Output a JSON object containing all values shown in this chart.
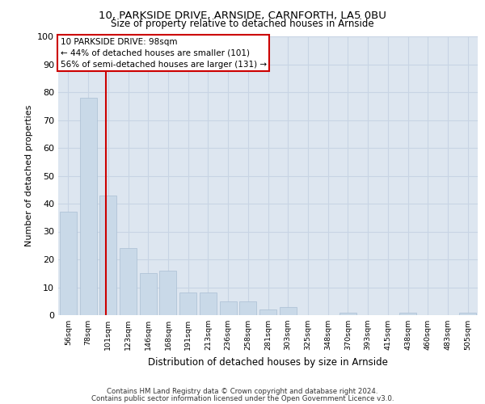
{
  "title1": "10, PARKSIDE DRIVE, ARNSIDE, CARNFORTH, LA5 0BU",
  "title2": "Size of property relative to detached houses in Arnside",
  "xlabel": "Distribution of detached houses by size in Arnside",
  "ylabel": "Number of detached properties",
  "categories": [
    "56sqm",
    "78sqm",
    "101sqm",
    "123sqm",
    "146sqm",
    "168sqm",
    "191sqm",
    "213sqm",
    "236sqm",
    "258sqm",
    "281sqm",
    "303sqm",
    "325sqm",
    "348sqm",
    "370sqm",
    "393sqm",
    "415sqm",
    "438sqm",
    "460sqm",
    "483sqm",
    "505sqm"
  ],
  "values": [
    37,
    78,
    43,
    24,
    15,
    16,
    8,
    8,
    5,
    5,
    2,
    3,
    0,
    0,
    1,
    0,
    0,
    1,
    0,
    0,
    1
  ],
  "bar_color": "#c9d9e8",
  "bar_edgecolor": "#aabfd4",
  "grid_color": "#c8d4e4",
  "background_color": "#dde6f0",
  "annotation_title": "10 PARKSIDE DRIVE: 98sqm",
  "annotation_line1": "← 44% of detached houses are smaller (101)",
  "annotation_line2": "56% of semi-detached houses are larger (131) →",
  "annotation_box_color": "#cc0000",
  "property_line_color": "#cc0000",
  "ylim": [
    0,
    100
  ],
  "yticks": [
    0,
    10,
    20,
    30,
    40,
    50,
    60,
    70,
    80,
    90,
    100
  ],
  "footnote1": "Contains HM Land Registry data © Crown copyright and database right 2024.",
  "footnote2": "Contains public sector information licensed under the Open Government Licence v3.0."
}
